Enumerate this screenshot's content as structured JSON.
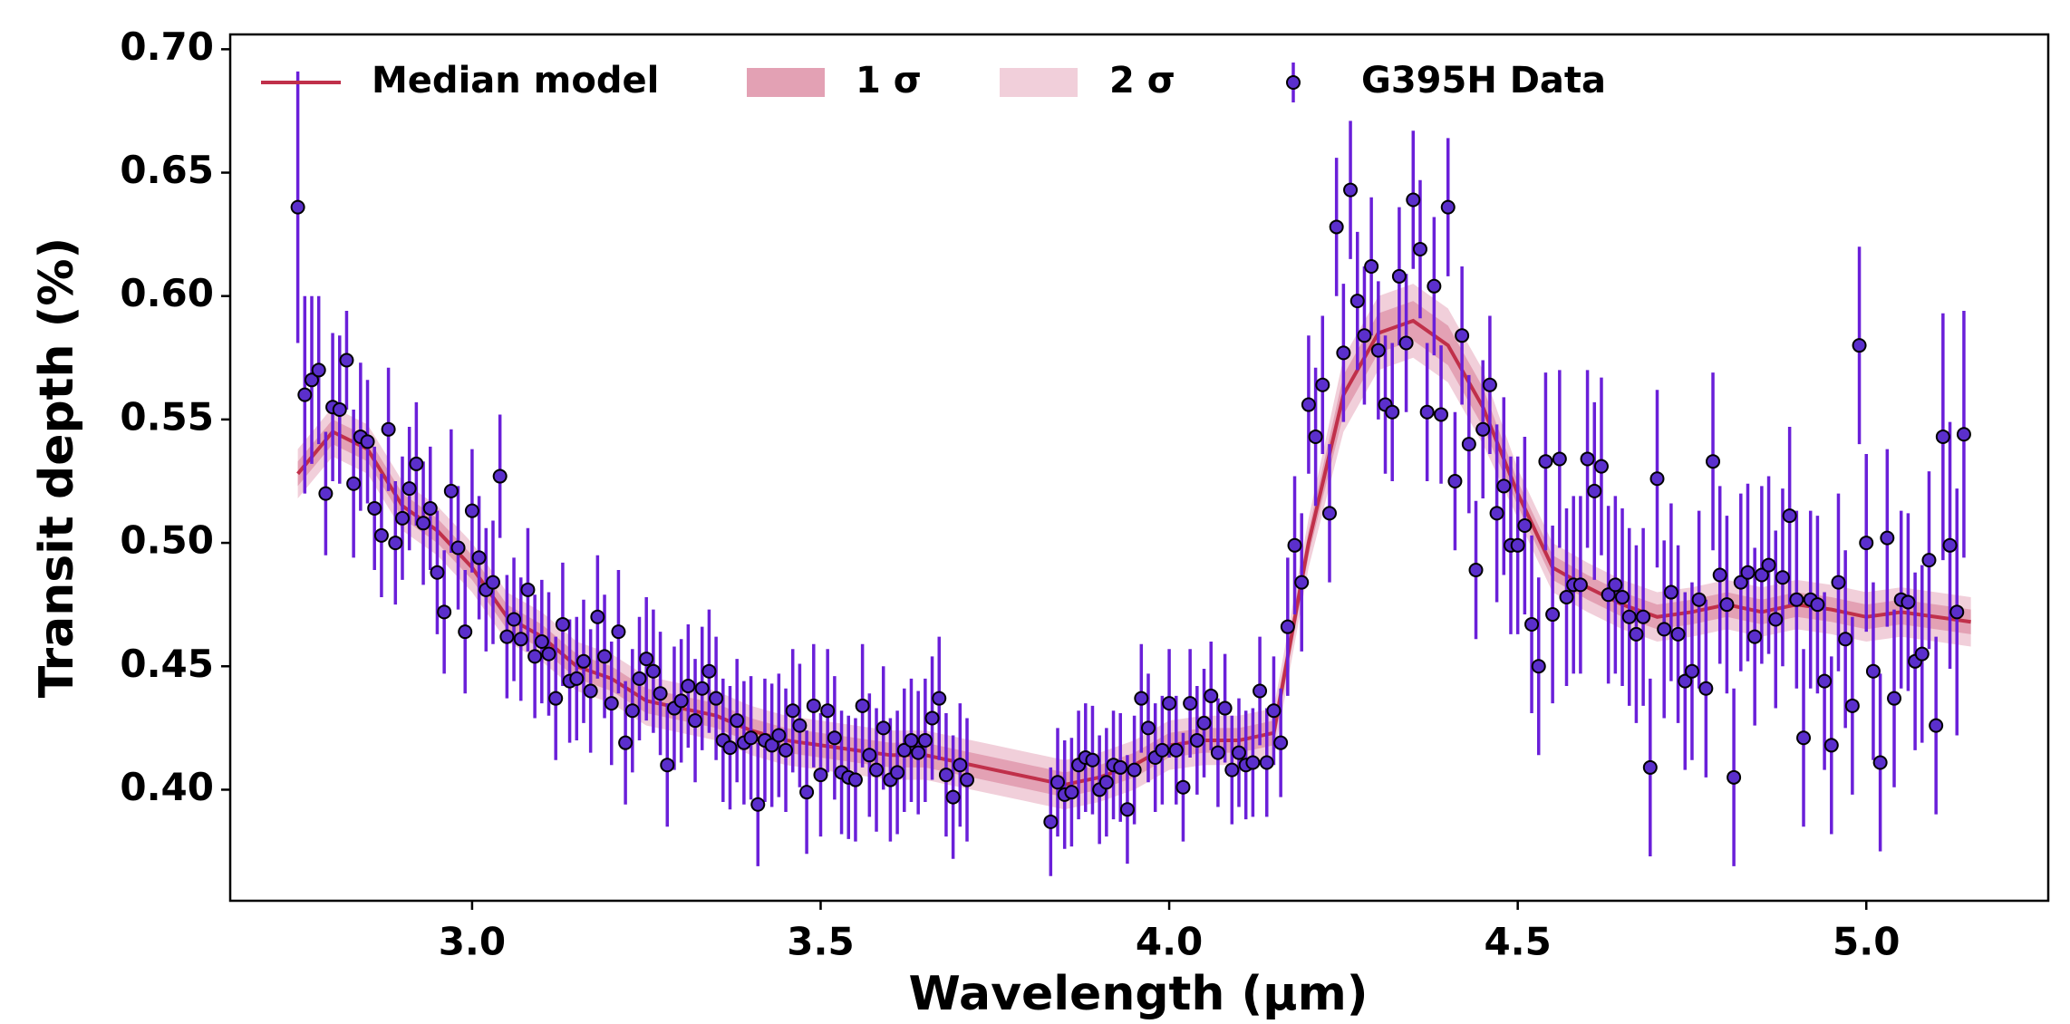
{
  "chart_data": {
    "type": "scatter",
    "xlabel": "Wavelength (µm)",
    "ylabel": "Transit depth (%)",
    "xlim": [
      2.653,
      5.261
    ],
    "ylim": [
      0.355,
      0.706
    ],
    "xticks": [
      {
        "value": 3,
        "label": "3.0"
      },
      3.5,
      {
        "value": 4,
        "label": "4.0"
      },
      4.5,
      {
        "value": 5,
        "label": "5.0"
      }
    ],
    "yticks": [
      {
        "value": 0.4,
        "label": "0.40"
      },
      0.45,
      {
        "value": 0.5,
        "label": "0.50"
      },
      0.55,
      {
        "value": 0.6,
        "label": "0.60"
      },
      0.65,
      {
        "value": 0.7,
        "label": "0.70"
      }
    ],
    "legend": "upper left",
    "series": [
      {
        "name": "Median model",
        "type": "line",
        "color": "#c0304a",
        "x": [
          2.75,
          2.8,
          2.85,
          2.9,
          2.95,
          3.0,
          3.05,
          3.1,
          3.15,
          3.2,
          3.25,
          3.3,
          3.35,
          3.4,
          3.45,
          3.5,
          3.55,
          3.6,
          3.65,
          3.7,
          3.75,
          3.8,
          3.85,
          3.9,
          3.95,
          4.0,
          4.05,
          4.1,
          4.15,
          4.2,
          4.25,
          4.3,
          4.35,
          4.4,
          4.45,
          4.5,
          4.55,
          4.6,
          4.65,
          4.7,
          4.75,
          4.8,
          4.85,
          4.9,
          4.95,
          5.0,
          5.05,
          5.1,
          5.15
        ],
        "values": [
          0.528,
          0.545,
          0.538,
          0.515,
          0.505,
          0.49,
          0.47,
          0.462,
          0.45,
          0.445,
          0.436,
          0.433,
          0.43,
          0.424,
          0.42,
          0.418,
          0.416,
          0.414,
          0.414,
          0.411,
          0.408,
          0.405,
          0.402,
          0.405,
          0.41,
          0.418,
          0.42,
          0.42,
          0.423,
          0.5,
          0.56,
          0.585,
          0.59,
          0.58,
          0.555,
          0.52,
          0.49,
          0.482,
          0.475,
          0.47,
          0.472,
          0.475,
          0.472,
          0.475,
          0.473,
          0.47,
          0.472,
          0.47,
          0.468
        ]
      },
      {
        "name": "1 σ",
        "type": "band",
        "color": "#e3a1b4",
        "lower": [
          0.523,
          0.54,
          0.533,
          0.51,
          0.5,
          0.485,
          0.465,
          0.457,
          0.445,
          0.44,
          0.431,
          0.428,
          0.425,
          0.419,
          0.415,
          0.413,
          0.411,
          0.409,
          0.409,
          0.406,
          0.403,
          0.4,
          0.397,
          0.4,
          0.405,
          0.413,
          0.415,
          0.415,
          0.418,
          0.495,
          0.552,
          0.577,
          0.582,
          0.572,
          0.547,
          0.515,
          0.485,
          0.477,
          0.47,
          0.465,
          0.467,
          0.47,
          0.467,
          0.47,
          0.468,
          0.465,
          0.467,
          0.465,
          0.463
        ],
        "upper": [
          0.533,
          0.55,
          0.543,
          0.52,
          0.51,
          0.495,
          0.475,
          0.467,
          0.455,
          0.45,
          0.441,
          0.438,
          0.435,
          0.429,
          0.425,
          0.423,
          0.421,
          0.419,
          0.419,
          0.416,
          0.413,
          0.41,
          0.407,
          0.41,
          0.415,
          0.423,
          0.425,
          0.425,
          0.428,
          0.505,
          0.568,
          0.593,
          0.598,
          0.588,
          0.563,
          0.525,
          0.495,
          0.487,
          0.48,
          0.475,
          0.477,
          0.48,
          0.477,
          0.48,
          0.478,
          0.475,
          0.477,
          0.475,
          0.473
        ]
      },
      {
        "name": "2 σ",
        "type": "band",
        "color": "#f1cfda",
        "lower": [
          0.518,
          0.535,
          0.528,
          0.505,
          0.495,
          0.48,
          0.46,
          0.452,
          0.44,
          0.435,
          0.426,
          0.423,
          0.42,
          0.414,
          0.41,
          0.408,
          0.406,
          0.404,
          0.404,
          0.401,
          0.398,
          0.395,
          0.392,
          0.395,
          0.4,
          0.408,
          0.41,
          0.41,
          0.413,
          0.49,
          0.545,
          0.57,
          0.575,
          0.565,
          0.54,
          0.51,
          0.48,
          0.472,
          0.465,
          0.46,
          0.462,
          0.465,
          0.462,
          0.465,
          0.463,
          0.46,
          0.462,
          0.46,
          0.458
        ],
        "upper": [
          0.538,
          0.555,
          0.548,
          0.525,
          0.515,
          0.5,
          0.48,
          0.472,
          0.46,
          0.455,
          0.446,
          0.443,
          0.44,
          0.434,
          0.43,
          0.428,
          0.426,
          0.424,
          0.424,
          0.421,
          0.418,
          0.415,
          0.412,
          0.415,
          0.42,
          0.428,
          0.43,
          0.43,
          0.433,
          0.51,
          0.575,
          0.6,
          0.605,
          0.595,
          0.57,
          0.53,
          0.5,
          0.492,
          0.485,
          0.48,
          0.482,
          0.485,
          0.482,
          0.485,
          0.483,
          0.48,
          0.482,
          0.48,
          0.478
        ]
      },
      {
        "name": "G395H Data",
        "type": "errorbar",
        "color": "#6a1fd9",
        "marker_color": "#5b2fcc",
        "x": [
          2.75,
          2.76,
          2.77,
          2.78,
          2.79,
          2.8,
          2.81,
          2.82,
          2.83,
          2.84,
          2.85,
          2.86,
          2.87,
          2.88,
          2.89,
          2.9,
          2.91,
          2.92,
          2.93,
          2.94,
          2.95,
          2.96,
          2.97,
          2.98,
          2.99,
          3.0,
          3.01,
          3.02,
          3.03,
          3.04,
          3.05,
          3.06,
          3.07,
          3.08,
          3.09,
          3.1,
          3.11,
          3.12,
          3.13,
          3.14,
          3.15,
          3.16,
          3.17,
          3.18,
          3.19,
          3.2,
          3.21,
          3.22,
          3.23,
          3.24,
          3.25,
          3.26,
          3.27,
          3.28,
          3.29,
          3.3,
          3.31,
          3.32,
          3.33,
          3.34,
          3.35,
          3.36,
          3.37,
          3.38,
          3.39,
          3.4,
          3.41,
          3.42,
          3.43,
          3.44,
          3.45,
          3.46,
          3.47,
          3.48,
          3.49,
          3.5,
          3.51,
          3.52,
          3.53,
          3.54,
          3.55,
          3.56,
          3.57,
          3.58,
          3.59,
          3.6,
          3.61,
          3.62,
          3.63,
          3.64,
          3.65,
          3.66,
          3.67,
          3.68,
          3.69,
          3.7,
          3.71,
          3.83,
          3.84,
          3.85,
          3.86,
          3.87,
          3.88,
          3.89,
          3.9,
          3.91,
          3.92,
          3.93,
          3.94,
          3.95,
          3.96,
          3.97,
          3.98,
          3.99,
          4.0,
          4.01,
          4.02,
          4.03,
          4.04,
          4.05,
          4.06,
          4.07,
          4.08,
          4.09,
          4.1,
          4.11,
          4.12,
          4.13,
          4.14,
          4.15,
          4.16,
          4.17,
          4.18,
          4.19,
          4.2,
          4.21,
          4.22,
          4.23,
          4.24,
          4.25,
          4.26,
          4.27,
          4.28,
          4.29,
          4.3,
          4.31,
          4.32,
          4.33,
          4.34,
          4.35,
          4.36,
          4.37,
          4.38,
          4.39,
          4.4,
          4.41,
          4.42,
          4.43,
          4.44,
          4.45,
          4.46,
          4.47,
          4.48,
          4.49,
          4.5,
          4.51,
          4.52,
          4.53,
          4.54,
          4.55,
          4.56,
          4.57,
          4.58,
          4.59,
          4.6,
          4.61,
          4.62,
          4.63,
          4.64,
          4.65,
          4.66,
          4.67,
          4.68,
          4.69,
          4.7,
          4.71,
          4.72,
          4.73,
          4.74,
          4.75,
          4.76,
          4.77,
          4.78,
          4.79,
          4.8,
          4.81,
          4.82,
          4.83,
          4.84,
          4.85,
          4.86,
          4.87,
          4.88,
          4.89,
          4.9,
          4.91,
          4.92,
          4.93,
          4.94,
          4.95,
          4.96,
          4.97,
          4.98,
          4.99,
          5.0,
          5.01,
          5.02,
          5.03,
          5.04,
          5.05,
          5.06,
          5.07,
          5.08,
          5.09,
          5.1,
          5.11,
          5.12,
          5.13,
          5.14
        ],
        "values": [
          0.636,
          0.56,
          0.566,
          0.57,
          0.52,
          0.555,
          0.554,
          0.574,
          0.524,
          0.543,
          0.541,
          0.514,
          0.503,
          0.546,
          0.5,
          0.51,
          0.522,
          0.532,
          0.508,
          0.514,
          0.488,
          0.472,
          0.521,
          0.498,
          0.464,
          0.513,
          0.494,
          0.481,
          0.484,
          0.527,
          0.462,
          0.469,
          0.461,
          0.481,
          0.454,
          0.46,
          0.455,
          0.437,
          0.467,
          0.444,
          0.445,
          0.452,
          0.44,
          0.47,
          0.454,
          0.435,
          0.464,
          0.419,
          0.432,
          0.445,
          0.453,
          0.448,
          0.439,
          0.41,
          0.433,
          0.436,
          0.442,
          0.428,
          0.441,
          0.448,
          0.437,
          0.42,
          0.417,
          0.428,
          0.419,
          0.421,
          0.394,
          0.42,
          0.418,
          0.422,
          0.416,
          0.432,
          0.426,
          0.399,
          0.434,
          0.406,
          0.432,
          0.421,
          0.407,
          0.405,
          0.404,
          0.434,
          0.414,
          0.408,
          0.425,
          0.404,
          0.407,
          0.416,
          0.42,
          0.415,
          0.42,
          0.429,
          0.437,
          0.406,
          0.397,
          0.41,
          0.404,
          0.387,
          0.403,
          0.398,
          0.399,
          0.41,
          0.413,
          0.412,
          0.4,
          0.403,
          0.41,
          0.409,
          0.392,
          0.408,
          0.437,
          0.425,
          0.413,
          0.416,
          0.435,
          0.416,
          0.401,
          0.435,
          0.42,
          0.427,
          0.438,
          0.415,
          0.433,
          0.408,
          0.415,
          0.41,
          0.411,
          0.44,
          0.411,
          0.432,
          0.419,
          0.466,
          0.499,
          0.484,
          0.556,
          0.543,
          0.564,
          0.512,
          0.628,
          0.577,
          0.643,
          0.598,
          0.584,
          0.612,
          0.578,
          0.556,
          0.553,
          0.608,
          0.581,
          0.639,
          0.619,
          0.553,
          0.604,
          0.552,
          0.636,
          0.525,
          0.584,
          0.54,
          0.489,
          0.546,
          0.564,
          0.512,
          0.523,
          0.499,
          0.499,
          0.507,
          0.467,
          0.45,
          0.533,
          0.471,
          0.534,
          0.478,
          0.483,
          0.483,
          0.534,
          0.521,
          0.531,
          0.479,
          0.483,
          0.478,
          0.47,
          0.463,
          0.47,
          0.409,
          0.526,
          0.465,
          0.48,
          0.463,
          0.444,
          0.448,
          0.477,
          0.441,
          0.533,
          0.487,
          0.475,
          0.405,
          0.484,
          0.488,
          0.462,
          0.487,
          0.491,
          0.469,
          0.486,
          0.511,
          0.477,
          0.421,
          0.477,
          0.475,
          0.444,
          0.418,
          0.484,
          0.461,
          0.434,
          0.58,
          0.5,
          0.448,
          0.411,
          0.502,
          0.437,
          0.477,
          0.476,
          0.452,
          0.455,
          0.493,
          0.426,
          0.543,
          0.499,
          0.472,
          0.544
        ],
        "errors": [
          0.055,
          0.04,
          0.034,
          0.03,
          0.025,
          0.03,
          0.03,
          0.02,
          0.03,
          0.03,
          0.025,
          0.025,
          0.025,
          0.025,
          0.025,
          0.025,
          0.025,
          0.025,
          0.025,
          0.025,
          0.025,
          0.025,
          0.025,
          0.025,
          0.025,
          0.025,
          0.025,
          0.025,
          0.025,
          0.025,
          0.025,
          0.025,
          0.025,
          0.025,
          0.025,
          0.025,
          0.025,
          0.025,
          0.025,
          0.025,
          0.025,
          0.025,
          0.025,
          0.025,
          0.025,
          0.025,
          0.025,
          0.025,
          0.025,
          0.025,
          0.025,
          0.025,
          0.025,
          0.025,
          0.025,
          0.025,
          0.025,
          0.025,
          0.025,
          0.025,
          0.025,
          0.025,
          0.025,
          0.025,
          0.025,
          0.025,
          0.025,
          0.025,
          0.025,
          0.025,
          0.025,
          0.025,
          0.025,
          0.025,
          0.025,
          0.025,
          0.025,
          0.025,
          0.025,
          0.025,
          0.025,
          0.025,
          0.025,
          0.025,
          0.025,
          0.025,
          0.025,
          0.025,
          0.025,
          0.025,
          0.025,
          0.025,
          0.025,
          0.025,
          0.025,
          0.025,
          0.025,
          0.022,
          0.022,
          0.022,
          0.022,
          0.022,
          0.022,
          0.022,
          0.022,
          0.022,
          0.022,
          0.022,
          0.022,
          0.022,
          0.022,
          0.022,
          0.022,
          0.022,
          0.022,
          0.022,
          0.022,
          0.022,
          0.022,
          0.022,
          0.022,
          0.022,
          0.022,
          0.022,
          0.022,
          0.022,
          0.022,
          0.022,
          0.022,
          0.022,
          0.022,
          0.028,
          0.028,
          0.028,
          0.028,
          0.028,
          0.028,
          0.028,
          0.028,
          0.028,
          0.028,
          0.028,
          0.028,
          0.028,
          0.028,
          0.028,
          0.028,
          0.028,
          0.028,
          0.028,
          0.028,
          0.028,
          0.028,
          0.028,
          0.028,
          0.028,
          0.028,
          0.028,
          0.028,
          0.028,
          0.028,
          0.036,
          0.036,
          0.036,
          0.036,
          0.036,
          0.036,
          0.036,
          0.036,
          0.036,
          0.036,
          0.036,
          0.036,
          0.036,
          0.036,
          0.036,
          0.036,
          0.036,
          0.036,
          0.036,
          0.036,
          0.036,
          0.036,
          0.036,
          0.036,
          0.036,
          0.036,
          0.036,
          0.036,
          0.036,
          0.036,
          0.036,
          0.036,
          0.036,
          0.036,
          0.036,
          0.036,
          0.036,
          0.036,
          0.036,
          0.036,
          0.036,
          0.036,
          0.036,
          0.036,
          0.036,
          0.036,
          0.036,
          0.036,
          0.036,
          0.036,
          0.036,
          0.036,
          0.04,
          0.036,
          0.036,
          0.036,
          0.036,
          0.036,
          0.036,
          0.036,
          0.036,
          0.036,
          0.036,
          0.036,
          0.05,
          0.05,
          0.05,
          0.05
        ]
      }
    ]
  }
}
